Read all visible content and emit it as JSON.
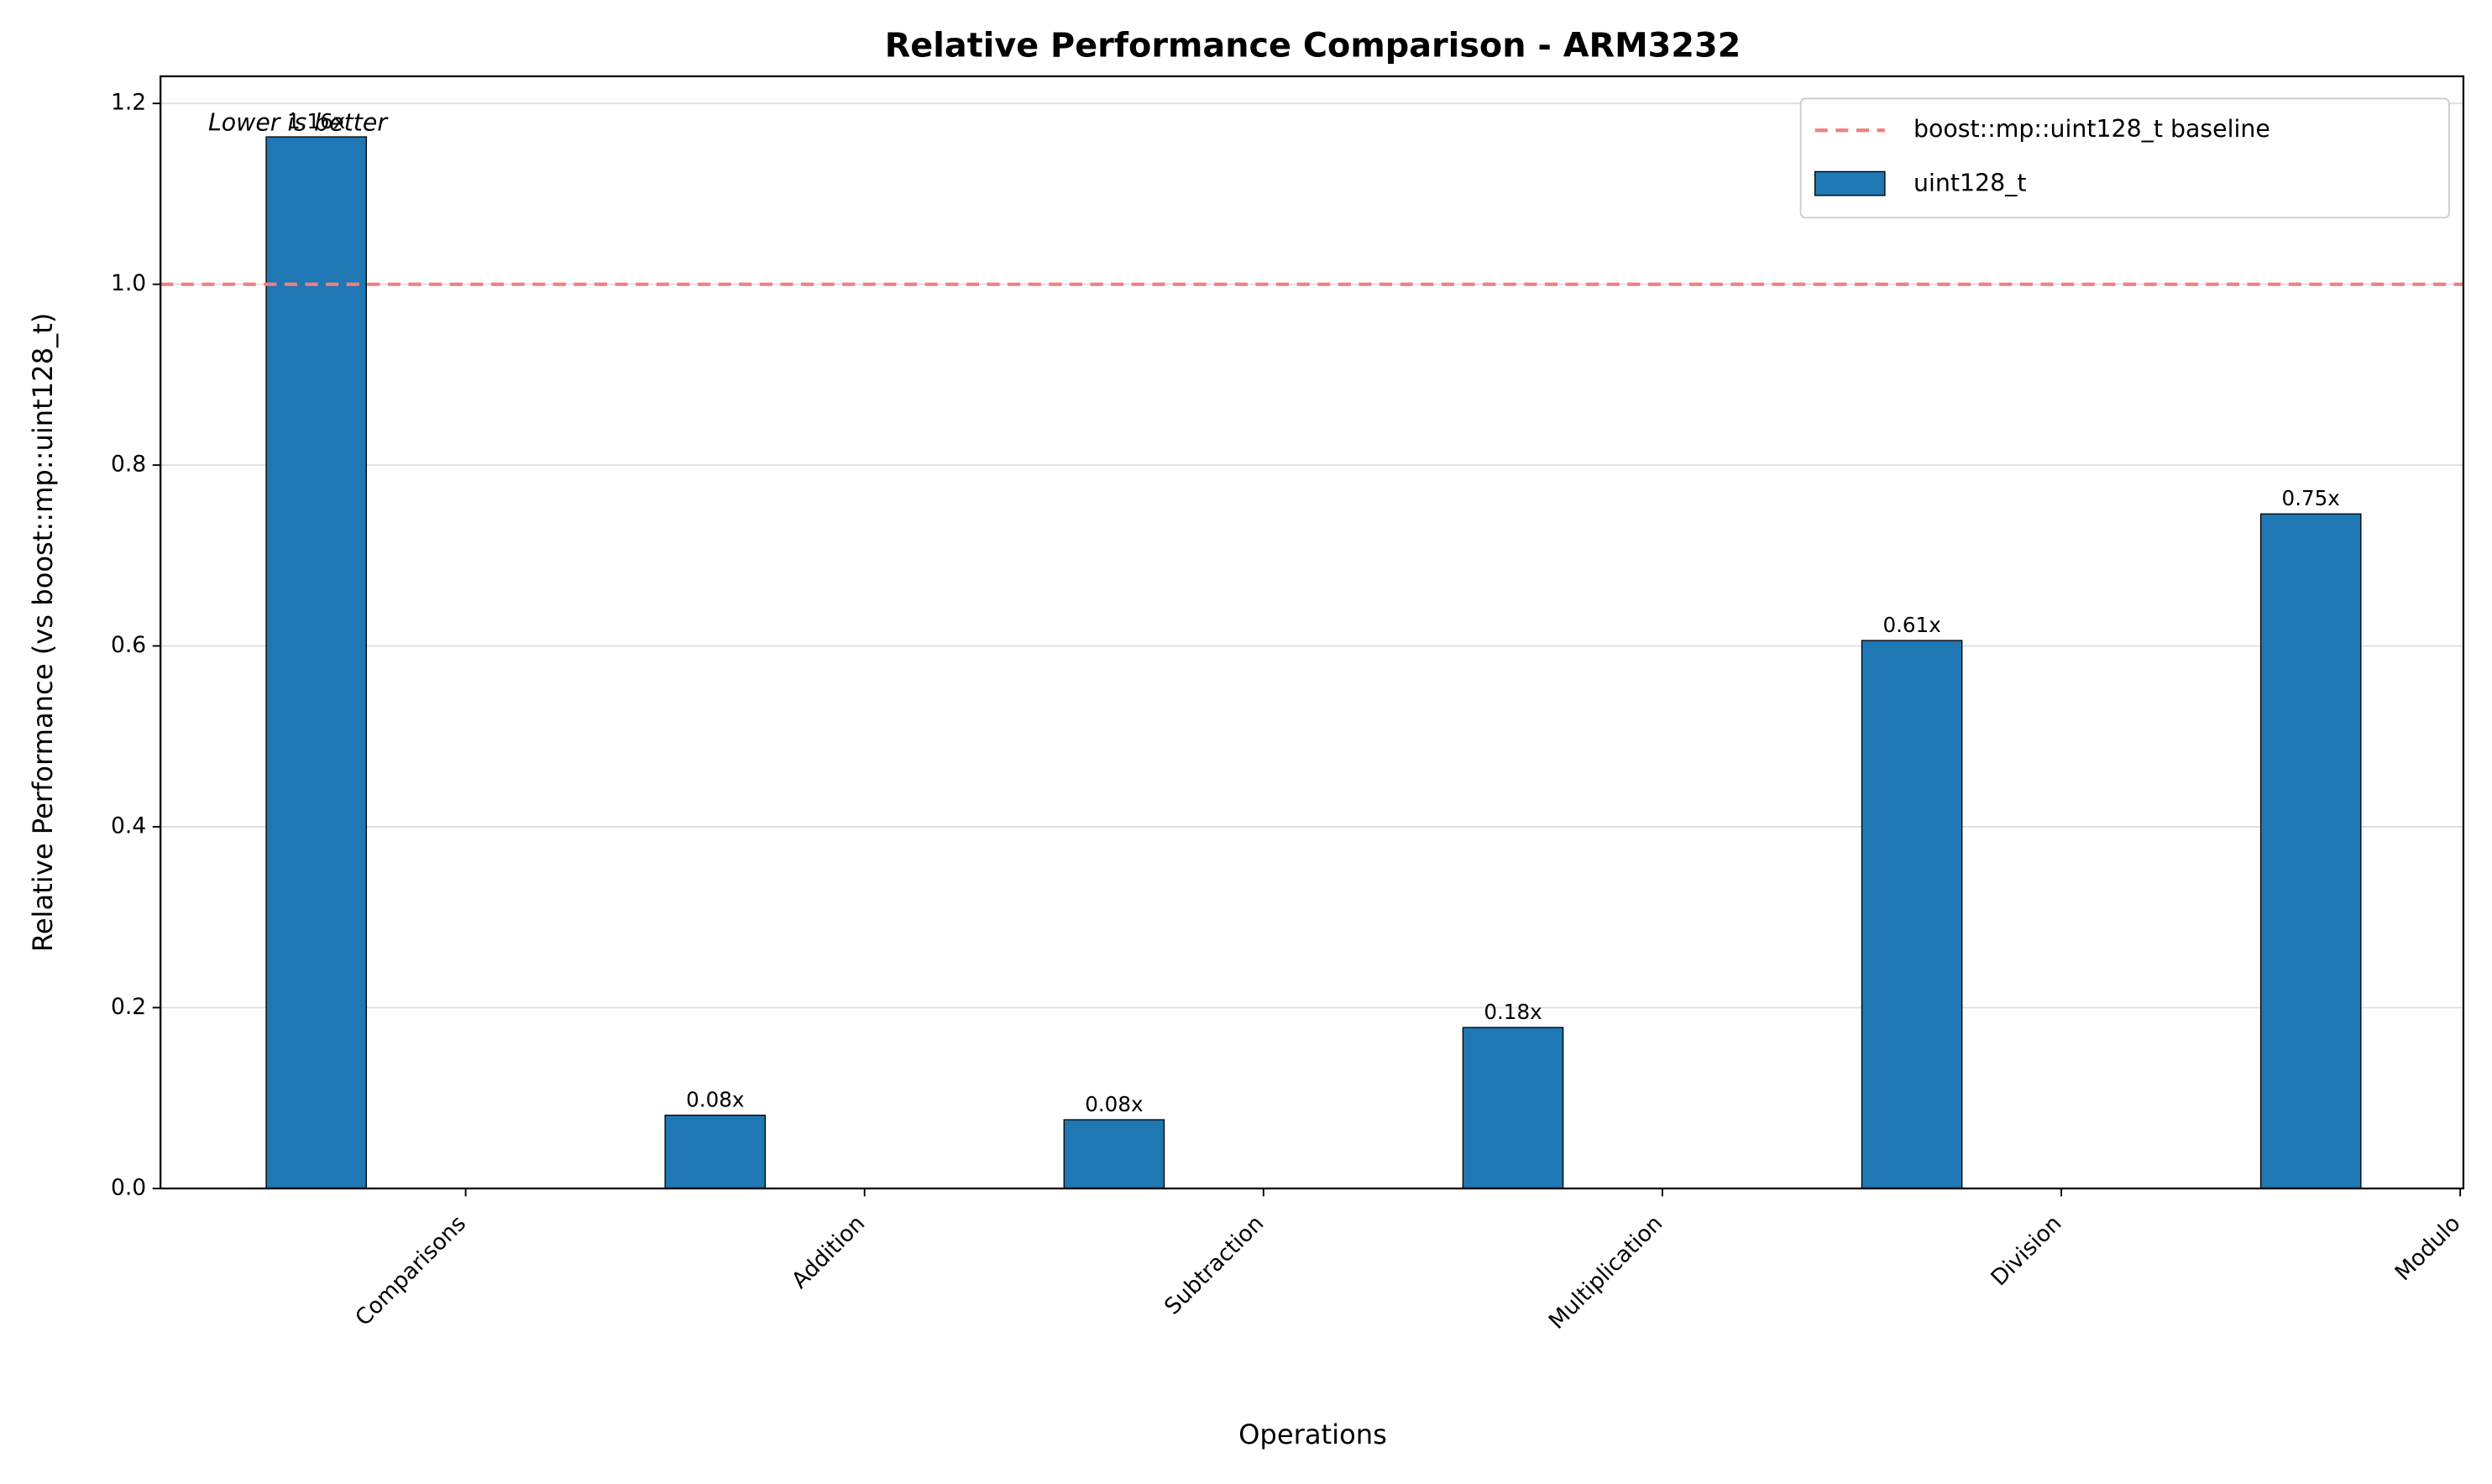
{
  "chart_data": {
    "type": "bar",
    "title": "Relative Performance Comparison - ARM3232",
    "xlabel": "Operations",
    "ylabel": "Relative Performance (vs boost::mp::uint128_t)",
    "annotation": "Lower is better",
    "categories": [
      "Comparisons",
      "Addition",
      "Subtraction",
      "Multiplication",
      "Division",
      "Modulo"
    ],
    "series": [
      {
        "name": "uint128_t",
        "color": "#1f77b4",
        "values": [
          1.163,
          0.081,
          0.076,
          0.178,
          0.606,
          0.746
        ],
        "value_labels": [
          "1.16x",
          "0.08x",
          "0.08x",
          "0.18x",
          "0.61x",
          "0.75x"
        ]
      }
    ],
    "baseline": {
      "name": "boost::mp::uint128_t baseline",
      "value": 1,
      "color": "#f08080"
    },
    "ylim": [
      0,
      1.23
    ],
    "yticks": [
      {
        "value": 0,
        "label": "0.0"
      },
      0.2,
      0.4,
      0.6,
      0.8,
      {
        "value": 1,
        "label": "1.0"
      },
      1.2
    ],
    "grid": true,
    "legend": "upper right"
  }
}
